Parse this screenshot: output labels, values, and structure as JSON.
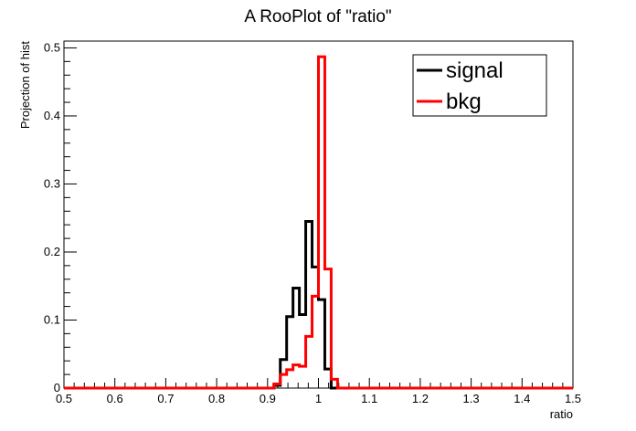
{
  "chart_data": {
    "type": "line",
    "title": "A RooPlot of \"ratio\"",
    "xlabel": "ratio",
    "ylabel": "Projection of hist",
    "xlim": [
      0.5,
      1.5
    ],
    "ylim": [
      0,
      0.51
    ],
    "x_ticks": [
      0.5,
      0.6,
      0.7,
      0.8,
      0.9,
      1.0,
      1.1,
      1.2,
      1.3,
      1.4,
      1.5
    ],
    "x_tick_labels": [
      "0.5",
      "0.6",
      "0.7",
      "0.8",
      "0.9",
      "1",
      "1.1",
      "1.2",
      "1.3",
      "1.4",
      "1.5"
    ],
    "y_ticks": [
      0,
      0.1,
      0.2,
      0.3,
      0.4,
      0.5
    ],
    "y_tick_labels": [
      "0",
      "0.1",
      "0.2",
      "0.3",
      "0.4",
      "0.5"
    ],
    "grid": false,
    "legend_position": "top-right",
    "bin_width": 0.0125,
    "series": [
      {
        "name": "signal",
        "color": "#000000",
        "bins": [
          {
            "x": 0.9125,
            "y": 0.004
          },
          {
            "x": 0.925,
            "y": 0.042
          },
          {
            "x": 0.9375,
            "y": 0.105
          },
          {
            "x": 0.95,
            "y": 0.147
          },
          {
            "x": 0.9625,
            "y": 0.108
          },
          {
            "x": 0.975,
            "y": 0.245
          },
          {
            "x": 0.9875,
            "y": 0.178
          },
          {
            "x": 1.0,
            "y": 0.13
          },
          {
            "x": 1.0125,
            "y": 0.028
          },
          {
            "x": 1.025,
            "y": 0.0
          }
        ]
      },
      {
        "name": "bkg",
        "color": "#ff0000",
        "bins": [
          {
            "x": 0.9125,
            "y": 0.006
          },
          {
            "x": 0.925,
            "y": 0.02
          },
          {
            "x": 0.9375,
            "y": 0.027
          },
          {
            "x": 0.95,
            "y": 0.034
          },
          {
            "x": 0.9625,
            "y": 0.032
          },
          {
            "x": 0.975,
            "y": 0.076
          },
          {
            "x": 0.9875,
            "y": 0.135
          },
          {
            "x": 1.0,
            "y": 0.487
          },
          {
            "x": 1.0125,
            "y": 0.175
          },
          {
            "x": 1.025,
            "y": 0.013
          },
          {
            "x": 1.0375,
            "y": 0.0
          }
        ]
      }
    ]
  }
}
